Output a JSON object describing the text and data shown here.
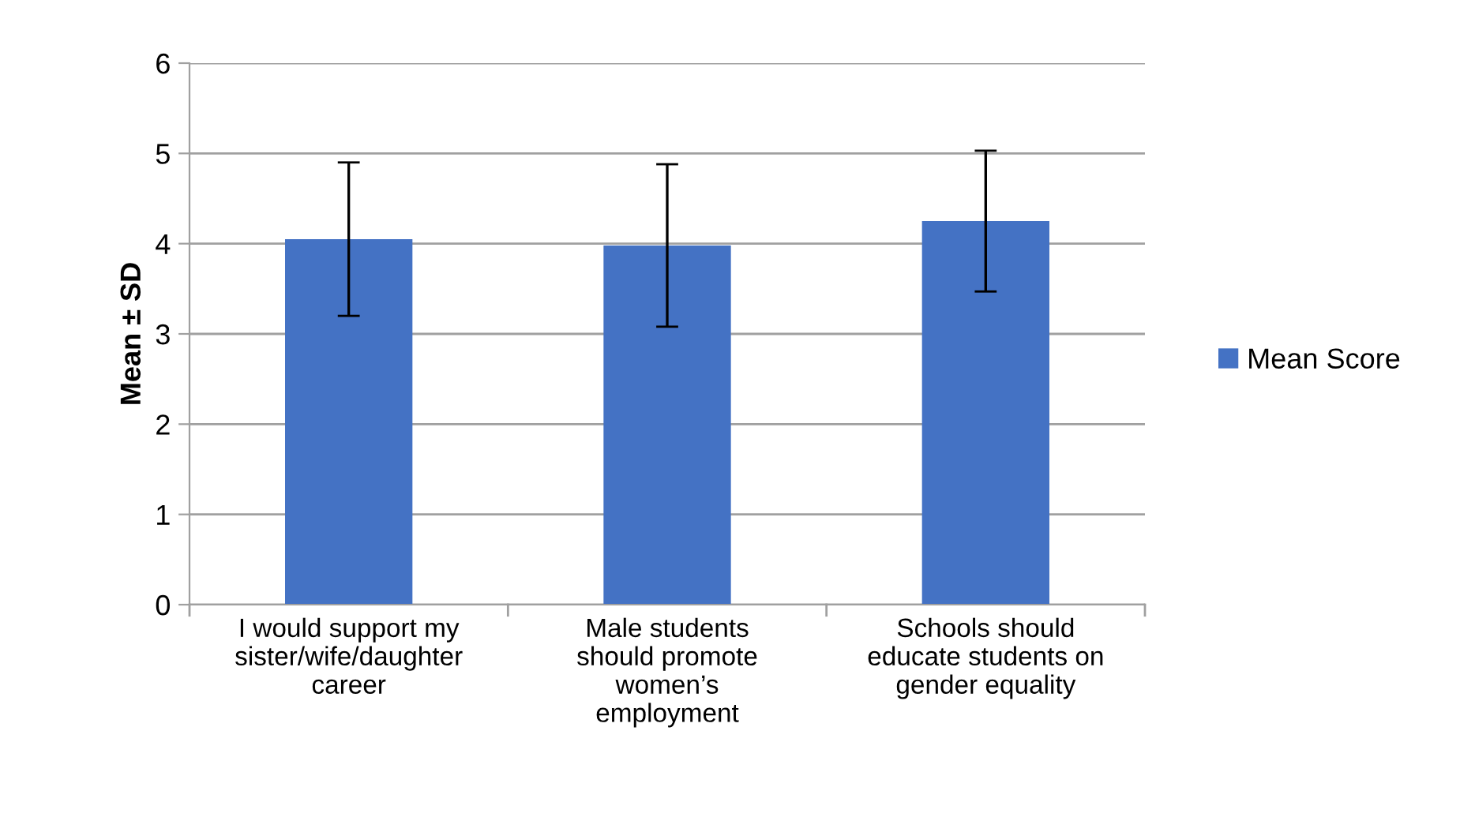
{
  "chart_data": {
    "type": "bar",
    "ylabel": "Mean ± SD",
    "categories": [
      "I would support my\nsister/wife/daughter\ncareer",
      "Male students\nshould promote\nwomen’s\nemployment",
      "Schools should\neducate students on\ngender equality"
    ],
    "series": [
      {
        "name": "Mean Score",
        "color": "#4472c4",
        "values": [
          4.05,
          3.98,
          4.25
        ],
        "errors": [
          0.85,
          0.9,
          0.78
        ]
      }
    ],
    "ylim": [
      0,
      6
    ],
    "yticks": [
      0,
      1,
      2,
      3,
      4,
      5,
      6
    ],
    "grid": "y",
    "legend": "right"
  }
}
